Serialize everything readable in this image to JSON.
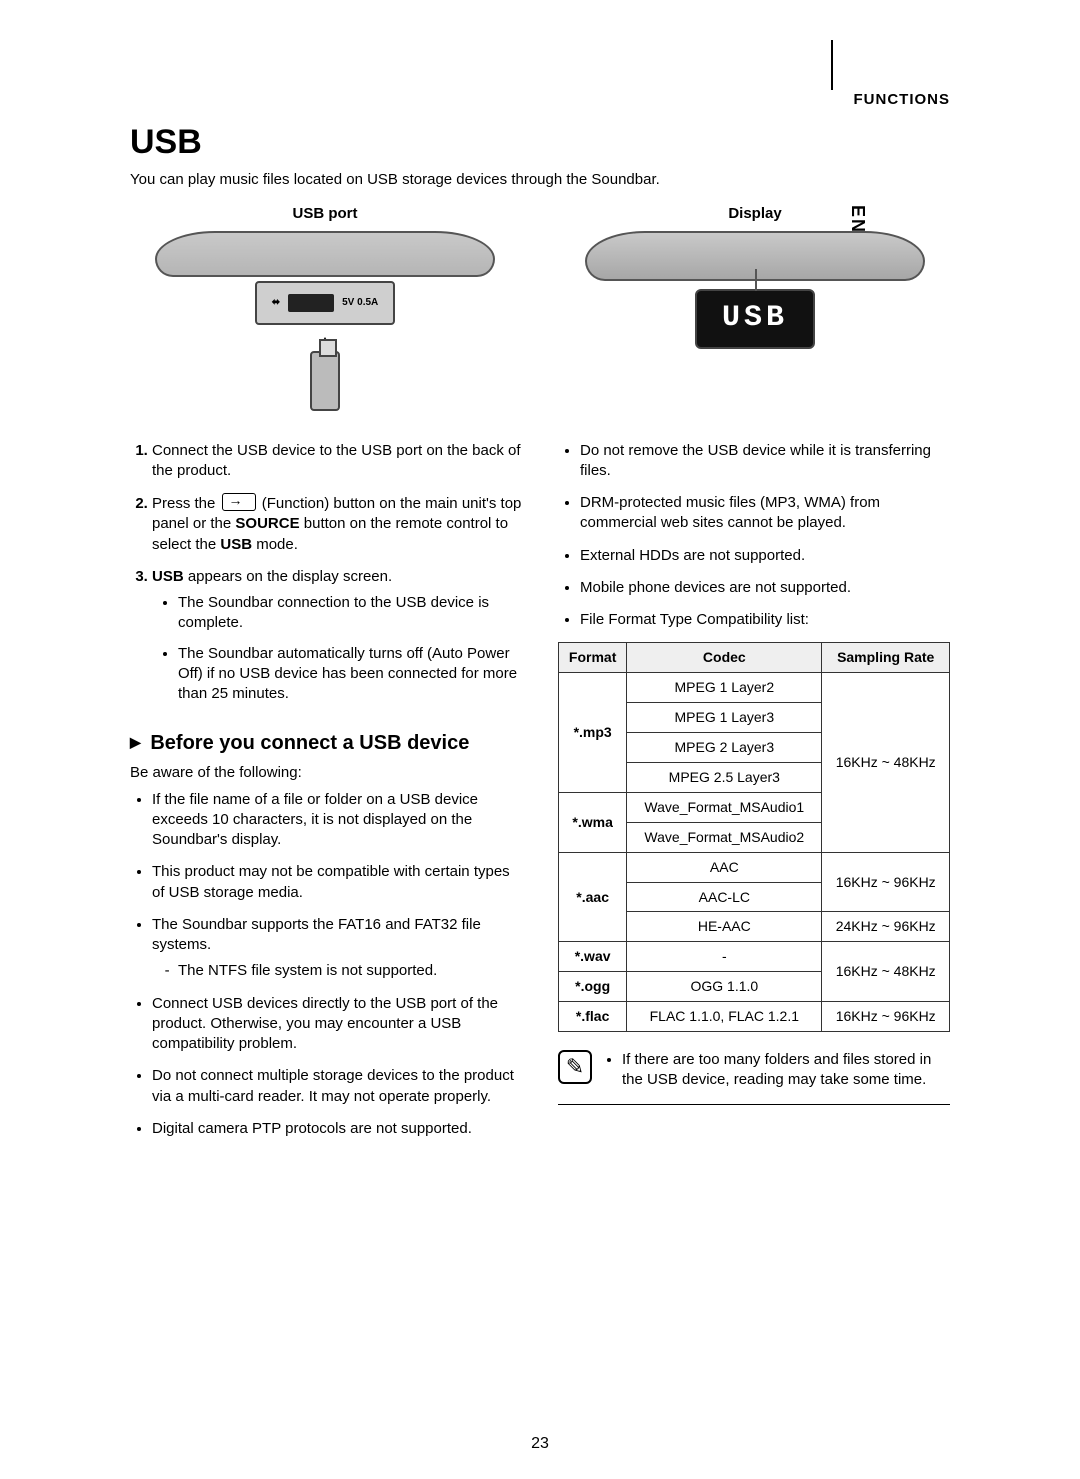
{
  "header": {
    "section": "FUNCTIONS",
    "lang": "ENG"
  },
  "title": "USB",
  "intro": "You can play music files located on USB storage devices through the Soundbar.",
  "figures": {
    "left_label": "USB port",
    "right_label": "Display",
    "port_text": "5V 0.5A",
    "display_text": "USB"
  },
  "steps": {
    "s1": "Connect the USB device to the USB port on the back of the product.",
    "s2_a": "Press the ",
    "s2_b": " (Function) button on the main unit's top panel or the ",
    "s2_source": "SOURCE",
    "s2_c": " button on the remote control to select the ",
    "s2_usb": "USB",
    "s2_d": " mode.",
    "s3_label": "USB",
    "s3_rest": " appears on the display screen.",
    "s3_sub1": "The Soundbar connection to the USB device is complete.",
    "s3_sub2": "The Soundbar automatically turns off (Auto Power Off) if no USB device has been connected for more than 25 minutes."
  },
  "subhead": "Before you connect a USB device",
  "aware": "Be aware of the following:",
  "left_bullets": {
    "b1": "If the file name of a file or folder on a USB device exceeds 10 characters, it is not displayed on the Soundbar's display.",
    "b2": "This product may not be compatible with certain types of USB storage media.",
    "b3": "The Soundbar supports the FAT16 and FAT32 file systems.",
    "b3_sub": "The NTFS file system is not supported.",
    "b4": "Connect USB devices directly to the USB port of the product. Otherwise, you may encounter a USB compatibility problem.",
    "b5": "Do not connect multiple storage devices to the product via a multi-card reader. It may not operate properly.",
    "b6": "Digital camera PTP protocols are not supported."
  },
  "right_bullets": {
    "r1": "Do not remove the USB device while it is transferring files.",
    "r2": "DRM-protected music files (MP3, WMA) from commercial web sites cannot be played.",
    "r3": "External HDDs are not supported.",
    "r4": "Mobile phone devices are not supported.",
    "r5": "File Format Type Compatibility list:"
  },
  "table": {
    "h1": "Format",
    "h2": "Codec",
    "h3": "Sampling Rate",
    "mp3": "*.mp3",
    "mp3_c1": "MPEG 1 Layer2",
    "mp3_c2": "MPEG 1 Layer3",
    "mp3_c3": "MPEG 2 Layer3",
    "mp3_c4": "MPEG 2.5 Layer3",
    "wma": "*.wma",
    "wma_c1": "Wave_Format_MSAudio1",
    "wma_c2": "Wave_Format_MSAudio2",
    "rate1": "16KHz ~ 48KHz",
    "aac": "*.aac",
    "aac_c1": "AAC",
    "aac_c2": "AAC-LC",
    "aac_c3": "HE-AAC",
    "rate2": "16KHz ~ 96KHz",
    "rate3": "24KHz ~ 96KHz",
    "wav": "*.wav",
    "wav_c": "-",
    "ogg": "*.ogg",
    "ogg_c": "OGG 1.1.0",
    "rate4": "16KHz ~ 48KHz",
    "flac": "*.flac",
    "flac_c": "FLAC 1.1.0, FLAC 1.2.1",
    "rate5": "16KHz ~ 96KHz"
  },
  "note": "If there are too many folders and files stored in the USB device, reading may take some time.",
  "page": "23"
}
